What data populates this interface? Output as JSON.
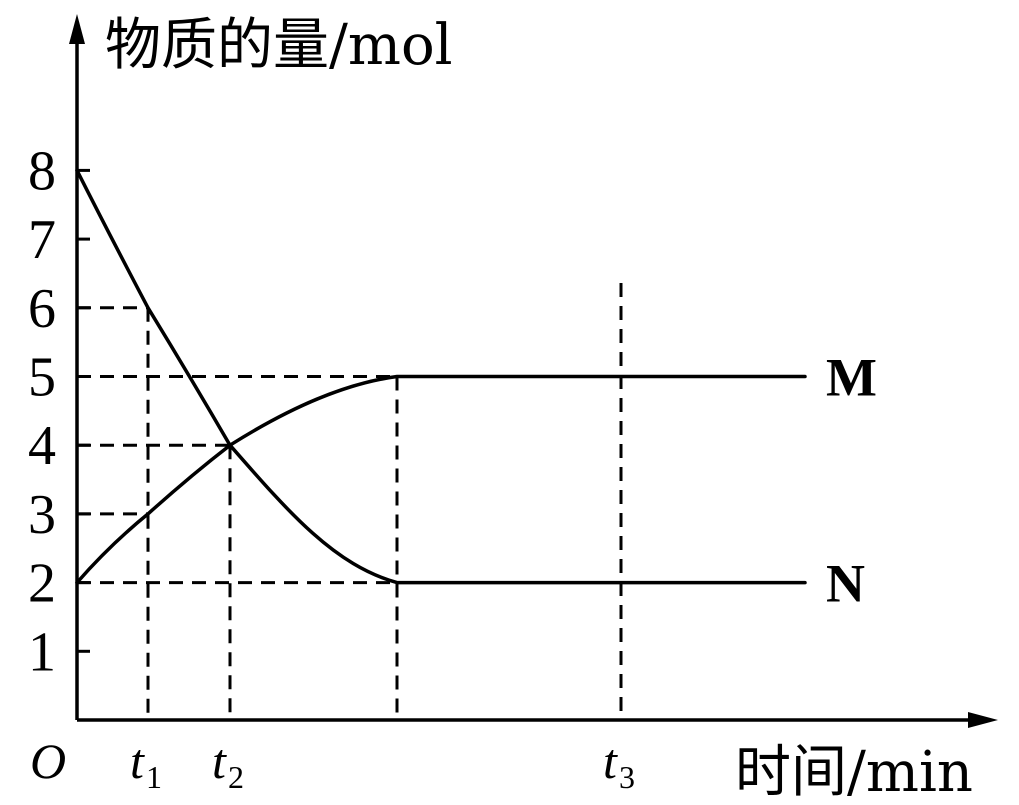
{
  "chart_data": {
    "type": "line",
    "ylabel": "物质的量/mol",
    "xlabel": "时间/min",
    "origin_label": "O",
    "ylim": [
      0,
      8
    ],
    "y_ticks": [
      "1",
      "2",
      "3",
      "4",
      "5",
      "6",
      "7",
      "8"
    ],
    "x_marks": [
      {
        "name": "t1",
        "letter": "t",
        "sub": "1"
      },
      {
        "name": "t2",
        "letter": "t",
        "sub": "2"
      },
      {
        "name": "t3",
        "letter": "t",
        "sub": "3"
      }
    ],
    "series": [
      {
        "name": "M",
        "values": [
          {
            "x": "0",
            "y": 2
          },
          {
            "x": "t1",
            "y": 3
          },
          {
            "x": "t2",
            "y": 4
          },
          {
            "x": "equilibrium",
            "y": 5
          },
          {
            "x": "t3",
            "y": 5
          },
          {
            "x": "end",
            "y": 5
          }
        ]
      },
      {
        "name": "N",
        "values": [
          {
            "x": "0",
            "y": 8
          },
          {
            "x": "t1",
            "y": 6
          },
          {
            "x": "t2",
            "y": 4
          },
          {
            "x": "equilibrium",
            "y": 2
          },
          {
            "x": "t3",
            "y": 2
          },
          {
            "x": "end",
            "y": 2
          }
        ]
      }
    ],
    "grid": false,
    "guide_lines": "dashed"
  }
}
